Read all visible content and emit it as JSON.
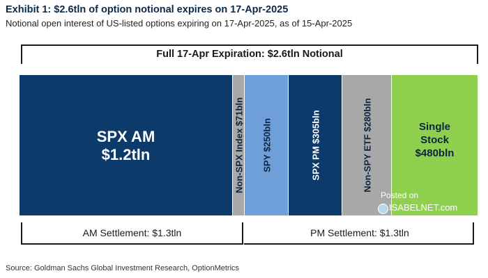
{
  "header": {
    "title": "Exhibit 1: $2.6tln of option notional expires on 17-Apr-2025",
    "subtitle": "Notional open interest of US-listed options expiring on 17-Apr-2025, as of 15-Apr-2025"
  },
  "chart_data": {
    "type": "bar",
    "title": "Full 17-Apr Expiration: $2.6tln Notional",
    "total_label": "Full 17-Apr Expiration: $2.6tln Notional",
    "segments": [
      {
        "label_lines": [
          "SPX AM",
          "$1.2tln"
        ],
        "value_bln": 1200,
        "color": "#0c3a6b",
        "text_color": "#ffffff",
        "orientation": "horizontal"
      },
      {
        "label_lines": [
          "Non-SPX Index $71bln"
        ],
        "value_bln": 71,
        "color": "#a8a8a8",
        "text_color": "#0d2440",
        "orientation": "vertical"
      },
      {
        "label_lines": [
          "SPY $250bln"
        ],
        "value_bln": 250,
        "color": "#6f9fd8",
        "text_color": "#0d2440",
        "orientation": "vertical"
      },
      {
        "label_lines": [
          "SPX PM $305bln"
        ],
        "value_bln": 305,
        "color": "#0c3a6b",
        "text_color": "#ffffff",
        "orientation": "vertical"
      },
      {
        "label_lines": [
          "Non-SPY ETF $280bln"
        ],
        "value_bln": 280,
        "color": "#a8a8a8",
        "text_color": "#0d2440",
        "orientation": "vertical"
      },
      {
        "label_lines": [
          "Single",
          "Stock",
          "$480bln"
        ],
        "value_bln": 480,
        "color": "#8fd14f",
        "text_color": "#0d2440",
        "orientation": "horizontal"
      }
    ],
    "groups": [
      {
        "label": "AM Settlement: $1.3tln",
        "segments": [
          0,
          1
        ]
      },
      {
        "label": "PM Settlement: $1.3tln",
        "segments": [
          2,
          3,
          4,
          5
        ]
      }
    ]
  },
  "source": "Source: Goldman Sachs Global Investment Research, OptionMetrics",
  "watermark": {
    "line1": "Posted on",
    "line2": "ISABELNET.com"
  }
}
